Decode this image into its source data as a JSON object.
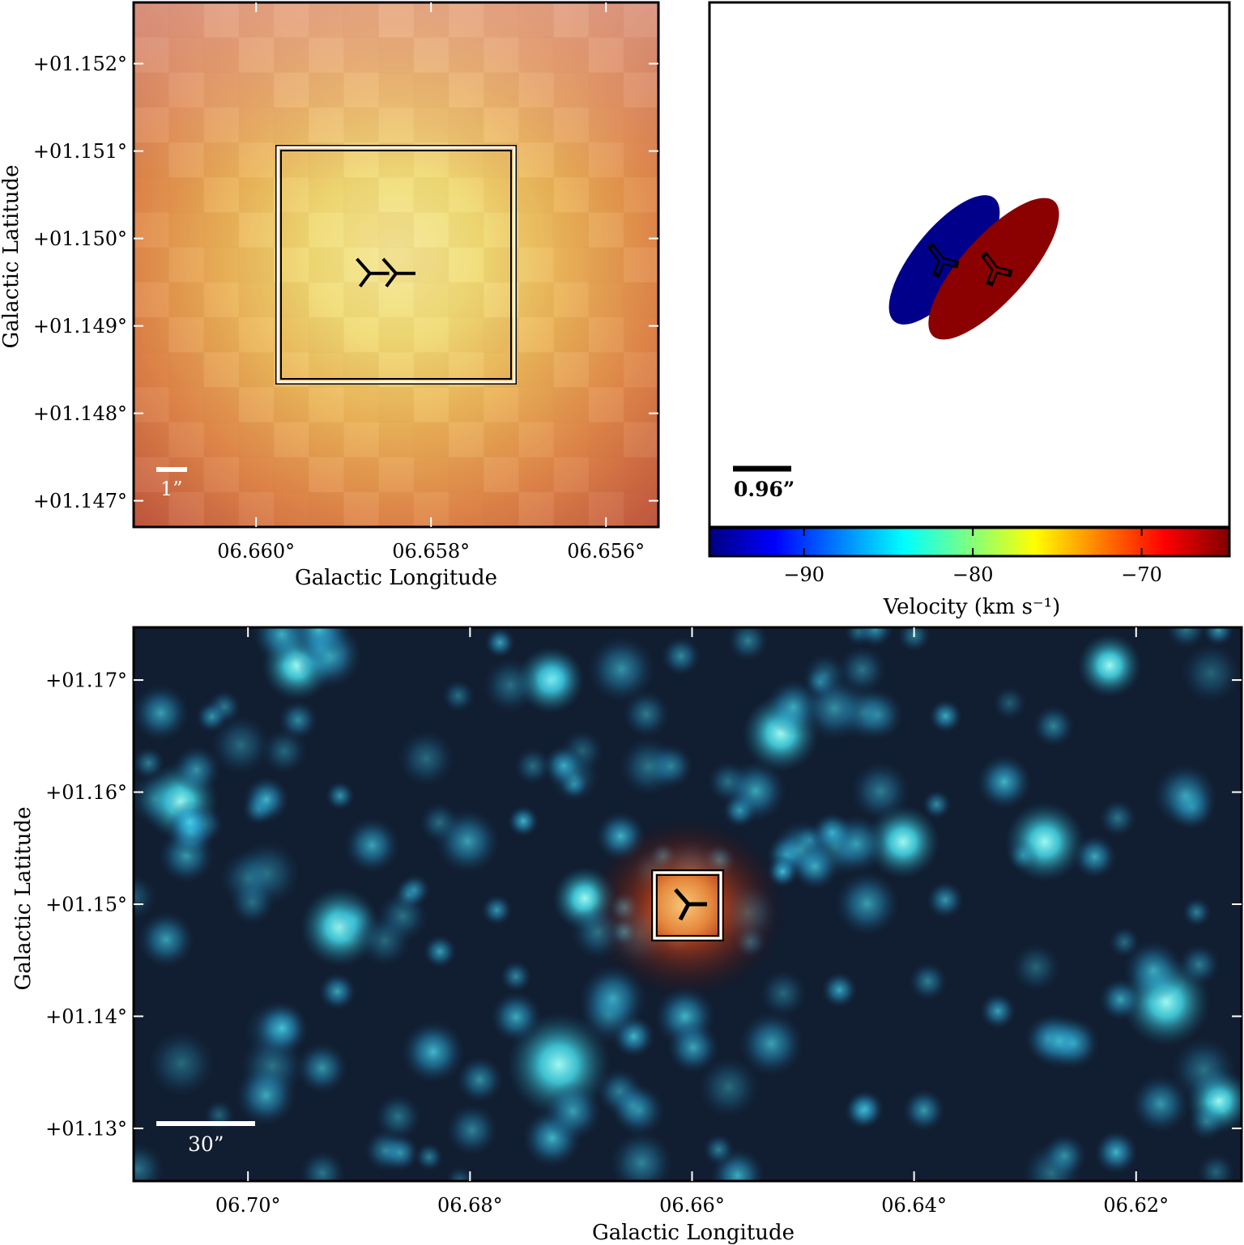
{
  "panel_zoom": {
    "xlabel": "Galactic Longitude",
    "ylabel": "Galactic Latitude",
    "xticks": [
      {
        "value": 6.66,
        "label": "06.660°"
      },
      {
        "value": 6.658,
        "label": "06.658°"
      },
      {
        "value": 6.656,
        "label": "06.656°"
      }
    ],
    "yticks": [
      {
        "value": 1.152,
        "label": "+01.152°"
      },
      {
        "value": 1.151,
        "label": "+01.151°"
      },
      {
        "value": 1.15,
        "label": "+01.150°"
      },
      {
        "value": 1.149,
        "label": "+01.149°"
      },
      {
        "value": 1.148,
        "label": "+01.148°"
      },
      {
        "value": 1.147,
        "label": "+01.147°"
      }
    ],
    "xlim": [
      6.6614,
      6.6554
    ],
    "ylim": [
      1.1467,
      1.1527
    ],
    "scalebar_label": "1”",
    "markers": [
      {
        "l": 6.6587,
        "b": 1.1496
      },
      {
        "l": 6.6584,
        "b": 1.1496
      }
    ]
  },
  "panel_kinematics": {
    "scalebar_label": "0.96”",
    "colorbar": {
      "label": "Velocity (km s⁻¹)",
      "range": [
        -95.6,
        -64.8
      ],
      "ticks": [
        {
          "value": -90,
          "label": "−90"
        },
        {
          "value": -80,
          "label": "−80"
        },
        {
          "value": -70,
          "label": "−70"
        }
      ],
      "colormap": "jet"
    },
    "components": [
      {
        "name": "blue",
        "color": "#00008b",
        "velocity": -95
      },
      {
        "name": "red",
        "color": "#8b0000",
        "velocity": -65
      }
    ]
  },
  "panel_wide": {
    "xlabel": "Galactic Longitude",
    "ylabel": "Galactic Latitude",
    "xticks": [
      {
        "value": 6.7,
        "label": "06.70°"
      },
      {
        "value": 6.68,
        "label": "06.68°"
      },
      {
        "value": 6.66,
        "label": "06.66°"
      },
      {
        "value": 6.64,
        "label": "06.64°"
      },
      {
        "value": 6.62,
        "label": "06.62°"
      }
    ],
    "yticks": [
      {
        "value": 1.17,
        "label": "+01.17°"
      },
      {
        "value": 1.16,
        "label": "+01.16°"
      },
      {
        "value": 1.15,
        "label": "+01.15°"
      },
      {
        "value": 1.14,
        "label": "+01.14°"
      },
      {
        "value": 1.13,
        "label": "+01.13°"
      }
    ],
    "xlim": [
      6.7103,
      6.6105
    ],
    "ylim": [
      1.1253,
      1.1747
    ],
    "scalebar_label": "30”"
  }
}
